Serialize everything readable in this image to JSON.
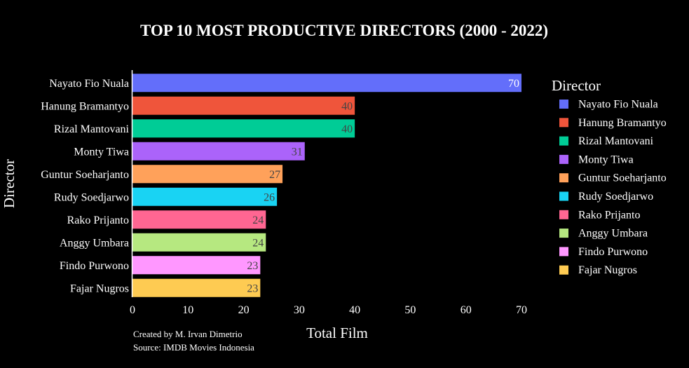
{
  "chart_data": {
    "type": "bar",
    "orientation": "horizontal",
    "title": "TOP 10 MOST PRODUCTIVE DIRECTORS (2000 - 2022)",
    "xlabel": "Total Film",
    "ylabel": "Director",
    "xlim": [
      0,
      70
    ],
    "xticks": [
      "0",
      "10",
      "20",
      "30",
      "40",
      "50",
      "60",
      "70"
    ],
    "categories": [
      "Nayato Fio Nuala",
      "Hanung Bramantyo",
      "Rizal Mantovani",
      "Monty Tiwa",
      "Guntur Soeharjanto",
      "Rudy Soedjarwo",
      "Rako Prijanto",
      "Anggy Umbara",
      "Findo Purwono",
      "Fajar Nugros"
    ],
    "values": [
      70,
      40,
      40,
      31,
      27,
      26,
      24,
      24,
      23,
      23
    ],
    "colors": [
      "#636efa",
      "#EF553B",
      "#00cc96",
      "#ab63fa",
      "#FFA15A",
      "#19d3f3",
      "#FF6692",
      "#B6E880",
      "#FF97FF",
      "#FECB52"
    ],
    "data_labels": [
      "70",
      "40",
      "40",
      "31",
      "27",
      "26",
      "24",
      "24",
      "23",
      "23"
    ],
    "label_colors": [
      "#ffffff",
      "#444444",
      "#444444",
      "#444444",
      "#444444",
      "#444444",
      "#444444",
      "#444444",
      "#444444",
      "#444444"
    ],
    "legend": {
      "title": "Director",
      "placement": "right"
    },
    "grid": false,
    "annotations": [
      "Created by M. Irvan Dimetrio",
      "Source: IMDB Movies Indonesia"
    ]
  }
}
